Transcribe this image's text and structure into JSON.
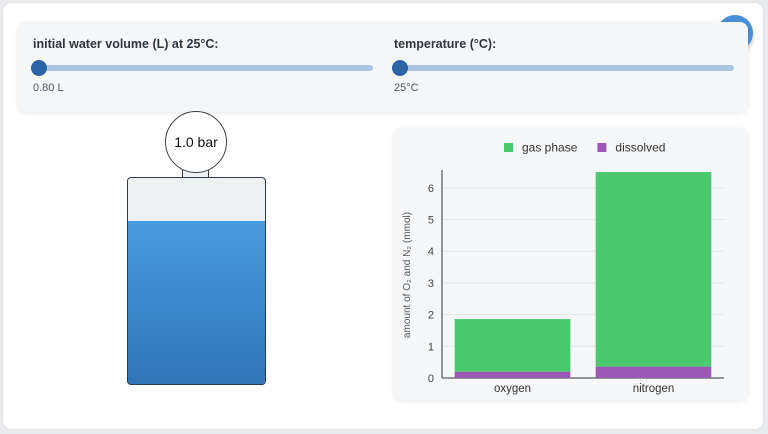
{
  "controls": {
    "water_volume": {
      "label": "initial water volume (L) at 25°C:",
      "value_text": "0.80 L",
      "value": 0.8,
      "level": 0
    },
    "temperature": {
      "label": "temperature (°C):",
      "value_text": "25°C",
      "value": 25,
      "level": 0
    }
  },
  "menu": {
    "icon": "hamburger-menu-icon"
  },
  "vessel": {
    "pressure_text": "1.0 bar",
    "water_fill_fraction": 0.79,
    "colors": {
      "water": "#3d8bd1",
      "headspace": "#eef1f2"
    }
  },
  "chart_data": {
    "type": "bar",
    "stacked": true,
    "categories": [
      "oxygen",
      "nitrogen"
    ],
    "series": [
      {
        "name": "dissolved",
        "values": [
          0.2,
          0.36
        ],
        "color": "#9b59b6"
      },
      {
        "name": "gas phase",
        "values": [
          1.66,
          6.14
        ],
        "color": "#4ac96e"
      }
    ],
    "legend_order": [
      "gas phase",
      "dissolved"
    ],
    "ylabel": "amount of O₂ and N₂ (mmol)",
    "xlabel": "",
    "ylim": [
      0,
      6.5
    ],
    "yticks": [
      0,
      1,
      2,
      3,
      4,
      5,
      6
    ],
    "grid": true,
    "legend_placement": "top"
  }
}
